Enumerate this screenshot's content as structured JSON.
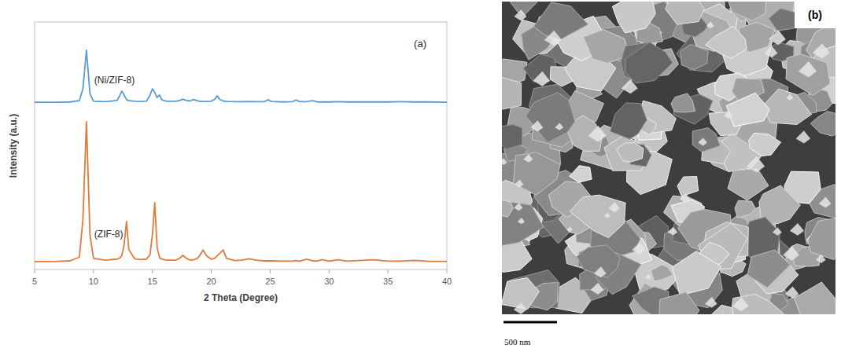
{
  "chart_data": {
    "type": "line",
    "panel_label": "(a)",
    "x_label": "2 Theta (Degree)",
    "y_label": "Intensity (a.u.)",
    "x": [
      5,
      6,
      7,
      8,
      8.8,
      9.1,
      9.4,
      9.7,
      10,
      11,
      12,
      12.2,
      12.4,
      12.6,
      12.8,
      13.0,
      13.5,
      14,
      14.5,
      14.8,
      15.0,
      15.2,
      15.4,
      15.6,
      15.8,
      16.2,
      17,
      17.3,
      17.6,
      17.9,
      18.2,
      18.5,
      18.8,
      19.0,
      19.3,
      19.6,
      20.0,
      20.3,
      20.5,
      20.7,
      21.0,
      21.3,
      22,
      22.6,
      23.2,
      23.8,
      24.5,
      24.8,
      25.1,
      26,
      26.9,
      27.2,
      27.5,
      28.1,
      28.6,
      29.0,
      29.4,
      30,
      30.8,
      31.5,
      32.5,
      33.8,
      35,
      36,
      37.2,
      38.5,
      40
    ],
    "series": [
      {
        "name": "(Ni/ZIF-8)",
        "color": "#5b9bd5",
        "values": [
          67.6,
          67.6,
          67.6,
          67.7,
          68.2,
          73,
          88.6,
          71,
          68.0,
          67.8,
          68.3,
          70,
          72.1,
          70.5,
          68.6,
          68.2,
          68.0,
          67.9,
          68.0,
          70.5,
          73,
          71.5,
          69.5,
          70.5,
          68.5,
          68.0,
          68.0,
          68.3,
          68.8,
          68.3,
          68.1,
          68.7,
          68.2,
          68.0,
          67.9,
          67.9,
          68.0,
          68.8,
          70.2,
          68.8,
          68.1,
          67.9,
          67.8,
          67.8,
          67.9,
          67.8,
          67.8,
          68.6,
          67.9,
          67.7,
          67.8,
          68.5,
          67.8,
          67.8,
          68.2,
          67.7,
          67.7,
          67.7,
          67.8,
          67.7,
          67.7,
          67.7,
          67.7,
          67.8,
          67.7,
          67.7,
          67.6
        ]
      },
      {
        "name": "(ZIF-8)",
        "color": "#e07b39",
        "values": [
          3.2,
          3.2,
          3.3,
          3.5,
          5.0,
          20,
          59.7,
          14,
          4.5,
          3.8,
          4.2,
          4.6,
          5.5,
          10,
          19.4,
          8,
          4.3,
          4.0,
          4.2,
          6,
          14,
          27,
          9,
          4.8,
          4.2,
          3.8,
          3.8,
          4.5,
          5.7,
          4.5,
          3.8,
          3.9,
          4.5,
          5.5,
          7.9,
          5.5,
          4.2,
          4.6,
          5.5,
          6.5,
          7.9,
          4.5,
          3.6,
          3.8,
          4.3,
          3.8,
          3.5,
          3.5,
          3.5,
          3.4,
          3.4,
          3.6,
          3.4,
          4.2,
          3.5,
          3.4,
          4.0,
          3.4,
          3.9,
          3.4,
          3.6,
          3.9,
          3.4,
          3.4,
          3.7,
          3.3,
          3.3
        ]
      }
    ],
    "xlim": [
      5,
      40
    ],
    "xticks": [
      5,
      10,
      15,
      20,
      25,
      30,
      35,
      40
    ],
    "ylim": [
      0,
      100
    ],
    "grid": false,
    "tick_labels": "x"
  },
  "image_panel": {
    "label": "(b)",
    "scale_bar": "500 nm"
  }
}
